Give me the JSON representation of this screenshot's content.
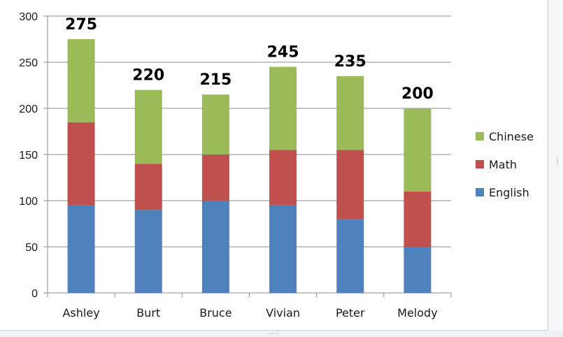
{
  "chart_data": {
    "type": "bar",
    "stacked": true,
    "categories": [
      "Ashley",
      "Burt",
      "Bruce",
      "Vivian",
      "Peter",
      "Melody"
    ],
    "series": [
      {
        "name": "English",
        "values": [
          95,
          90,
          100,
          95,
          80,
          50
        ],
        "color": "#4f81bd"
      },
      {
        "name": "Math",
        "values": [
          90,
          50,
          50,
          60,
          75,
          60
        ],
        "color": "#c0504d"
      },
      {
        "name": "Chinese",
        "values": [
          90,
          80,
          65,
          90,
          80,
          90
        ],
        "color": "#9bbb59"
      }
    ],
    "totals": [
      "275",
      "220",
      "215",
      "245",
      "235",
      "200"
    ],
    "ylim": [
      0,
      300
    ],
    "yticks": [
      "0",
      "50",
      "100",
      "150",
      "200",
      "250",
      "300"
    ],
    "ytick_values": [
      0,
      50,
      100,
      150,
      200,
      250,
      300
    ],
    "grid": true,
    "legend_position": "right",
    "legend_order": [
      "Chinese",
      "Math",
      "English"
    ],
    "title": "",
    "xlabel": "",
    "ylabel": ""
  },
  "colors": {
    "gridline": "#8c8c8c",
    "axis": "#8c8c8c"
  }
}
